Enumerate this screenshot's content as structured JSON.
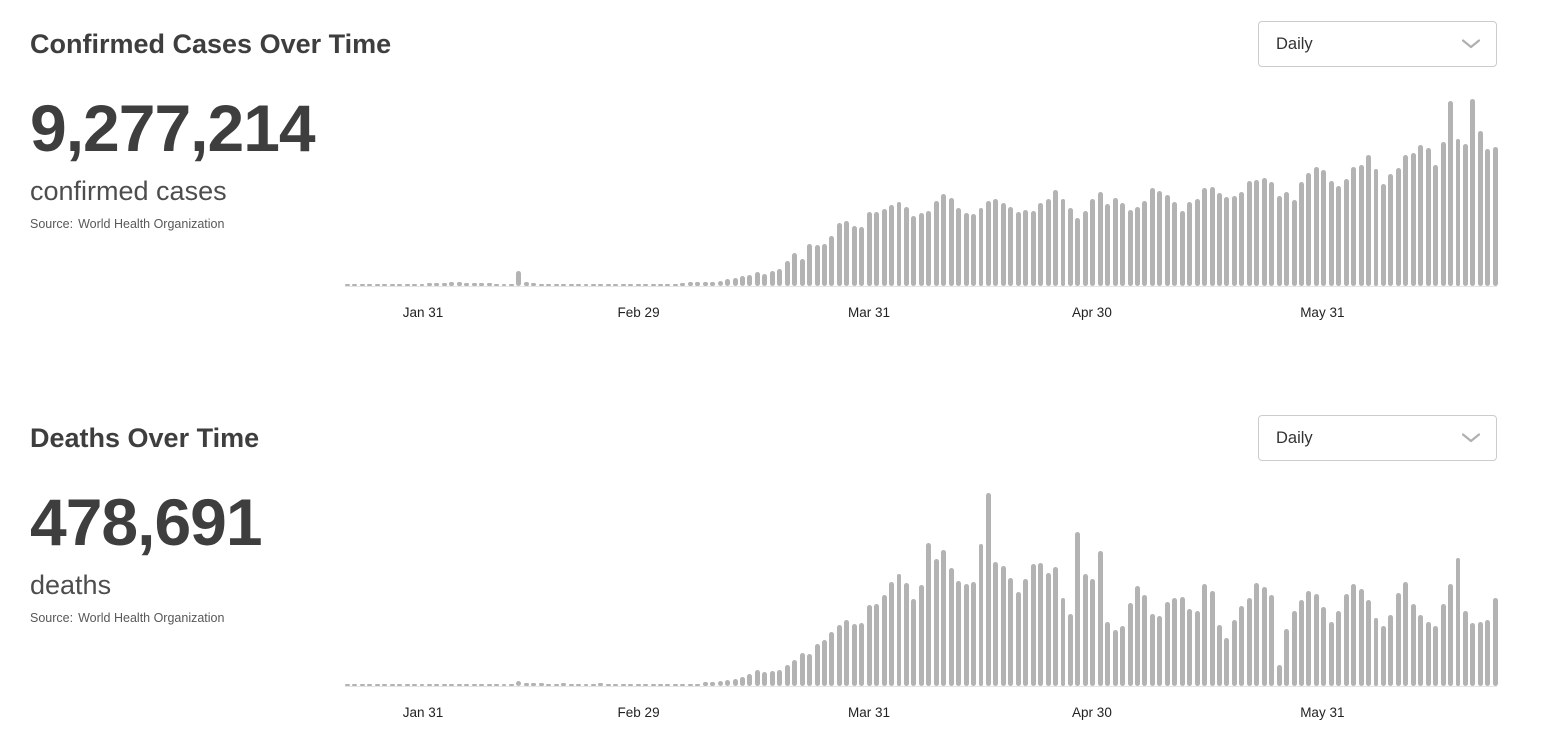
{
  "colors": {
    "bar": "#b3b3b3",
    "axis_line": "#e5e5e5",
    "title_text": "#3e3e3e",
    "stat_text": "#3e3e3e",
    "stat_label_text": "#4d4d4d",
    "source_text": "#585858",
    "tick_text": "#222222",
    "dropdown_border": "#cccccc",
    "dropdown_text": "#333333",
    "chevron": "#b0b0b0",
    "background": "#ffffff"
  },
  "sections": [
    {
      "title": "Confirmed Cases Over Time",
      "dropdown": {
        "selected": "Daily"
      },
      "stat": {
        "value": "9,277,214",
        "label": "confirmed cases",
        "source_label": "Source:",
        "source_name": "World Health Organization"
      }
    },
    {
      "title": "Deaths Over Time",
      "dropdown": {
        "selected": "Daily"
      },
      "stat": {
        "value": "478,691",
        "label": "deaths",
        "source_label": "Source:",
        "source_name": "World Health Organization"
      }
    }
  ],
  "chart_data": [
    {
      "type": "bar",
      "title": "Confirmed Cases Over Time",
      "series_name": "daily new confirmed cases",
      "frequency": "daily",
      "start_date": "2020-01-21",
      "end_date": "2020-06-23",
      "y_axis_visible": false,
      "grid": false,
      "ylim": [
        0,
        185000
      ],
      "x_tick_labels": [
        {
          "label": "Jan 31",
          "index": 10
        },
        {
          "label": "Feb 29",
          "index": 39
        },
        {
          "label": "Mar 31",
          "index": 70
        },
        {
          "label": "Apr 30",
          "index": 100
        },
        {
          "label": "May 31",
          "index": 131
        }
      ],
      "values": [
        300,
        500,
        700,
        900,
        1700,
        1800,
        2000,
        1700,
        1900,
        2000,
        2100,
        2600,
        2800,
        3200,
        3900,
        3700,
        3200,
        2700,
        3000,
        2500,
        2100,
        2000,
        400,
        15100,
        4200,
        2600,
        2200,
        2100,
        1900,
        600,
        500,
        1000,
        1300,
        650,
        700,
        1000,
        1150,
        1350,
        1800,
        1960,
        1740,
        1950,
        2160,
        2220,
        2340,
        2870,
        3660,
        3630,
        4000,
        4130,
        4650,
        6760,
        7520,
        9800,
        11000,
        13970,
        11550,
        15120,
        16560,
        24250,
        32000,
        26070,
        40790,
        39830,
        40710,
        49220,
        61870,
        63160,
        58410,
        57610,
        72740,
        72840,
        75850,
        79330,
        82060,
        77200,
        68770,
        71780,
        73640,
        82840,
        89660,
        85680,
        76320,
        71190,
        70080,
        76650,
        82970,
        85090,
        81150,
        76900,
        72850,
        73920,
        73660,
        81530,
        84900,
        93720,
        85310,
        76030,
        66280,
        73160,
        84770,
        91960,
        80540,
        86110,
        81450,
        74780,
        77640,
        83470,
        95850,
        92800,
        88890,
        82590,
        73300,
        82090,
        84870,
        96090,
        97180,
        91460,
        86740,
        88180,
        92080,
        102910,
        103980,
        105420,
        101910,
        87730,
        92220,
        84310,
        101870,
        110750,
        116720,
        113380,
        103240,
        97510,
        104700,
        116270,
        118480,
        128420,
        114670,
        100010,
        109490,
        115660,
        128490,
        130580,
        137530,
        134600,
        118500,
        140750,
        181230,
        144000,
        139000,
        183020,
        152000,
        134000,
        136000
      ]
    },
    {
      "type": "bar",
      "title": "Deaths Over Time",
      "series_name": "daily new deaths",
      "frequency": "daily",
      "start_date": "2020-01-21",
      "end_date": "2020-06-23",
      "y_axis_visible": false,
      "grid": false,
      "ylim": [
        0,
        10000
      ],
      "x_tick_labels": [
        {
          "label": "Jan 31",
          "index": 10
        },
        {
          "label": "Feb 29",
          "index": 39
        },
        {
          "label": "Mar 31",
          "index": 70
        },
        {
          "label": "Apr 30",
          "index": 100
        },
        {
          "label": "May 31",
          "index": 131
        }
      ],
      "values": [
        5,
        10,
        15,
        25,
        25,
        30,
        30,
        50,
        45,
        45,
        45,
        45,
        46,
        57,
        64,
        66,
        72,
        73,
        86,
        89,
        97,
        108,
        97,
        254,
        150,
        144,
        142,
        105,
        98,
        136,
        119,
        112,
        109,
        97,
        159,
        67,
        71,
        52,
        44,
        67,
        54,
        66,
        73,
        84,
        80,
        106,
        101,
        95,
        200,
        210,
        260,
        320,
        345,
        440,
        630,
        820,
        740,
        790,
        830,
        1070,
        1345,
        1690,
        1675,
        2180,
        2390,
        2810,
        3170,
        3430,
        3220,
        3280,
        4210,
        4260,
        4690,
        5370,
        5790,
        5320,
        4520,
        5230,
        7410,
        6570,
        7050,
        6080,
        5400,
        5270,
        5350,
        7350,
        9970,
        6410,
        6210,
        5580,
        4840,
        5530,
        6320,
        6350,
        5830,
        6170,
        4530,
        3710,
        7950,
        5800,
        5550,
        6980,
        3300,
        2900,
        3100,
        4300,
        5150,
        4700,
        3700,
        3600,
        4350,
        4550,
        4600,
        4000,
        3850,
        5250,
        4900,
        3150,
        2500,
        3400,
        4150,
        4550,
        5300,
        5100,
        4700,
        1100,
        2950,
        3900,
        4450,
        4900,
        4750,
        4100,
        3300,
        3900,
        4750,
        5250,
        5000,
        4450,
        3500,
        3100,
        3650,
        4800,
        5350,
        4250,
        3650,
        3300,
        3100,
        4250,
        5250,
        6600,
        3850,
        3270,
        3330,
        3430,
        4550
      ]
    }
  ]
}
